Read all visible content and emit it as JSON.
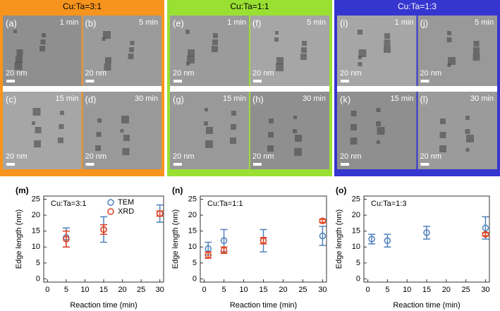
{
  "figure": {
    "panels": [
      {
        "header": "Cu:Ta=3:1",
        "color": "#f7941d",
        "images": [
          {
            "label": "(a)",
            "time": "1 min",
            "scale": "20 nm"
          },
          {
            "label": "(b)",
            "time": "5 min",
            "scale": "20 nm"
          },
          {
            "label": "(c)",
            "time": "15 min",
            "scale": "20 nm"
          },
          {
            "label": "(d)",
            "time": "30 min",
            "scale": "20 nm"
          }
        ]
      },
      {
        "header": "Cu:Ta=1:1",
        "color": "#99e033",
        "images": [
          {
            "label": "(e)",
            "time": "1 min",
            "scale": "20 nm"
          },
          {
            "label": "(f)",
            "time": "5 min",
            "scale": "20 nm"
          },
          {
            "label": "(g)",
            "time": "15 min",
            "scale": "20 nm"
          },
          {
            "label": "(h)",
            "time": "30 min",
            "scale": "20 nm"
          }
        ]
      },
      {
        "header": "Cu:Ta=1:3",
        "color": "#3535d0",
        "images": [
          {
            "label": "(i)",
            "time": "1 min",
            "scale": "20 nm"
          },
          {
            "label": "(j)",
            "time": "5 min",
            "scale": "20 nm"
          },
          {
            "label": "(k)",
            "time": "15 min",
            "scale": "20 nm"
          },
          {
            "label": "(l)",
            "time": "30 min",
            "scale": "20 nm"
          }
        ]
      }
    ]
  },
  "chart_data": [
    {
      "type": "scatter",
      "panel_label": "(m)",
      "annotation": "Cu:Ta=3:1",
      "xlabel": "Reaction time (min)",
      "ylabel": "Edge length (nm)",
      "x": [
        5,
        15,
        30
      ],
      "xlim": [
        -1,
        31
      ],
      "xticks": [
        0,
        5,
        10,
        15,
        20,
        25,
        30
      ],
      "ylim": [
        -1,
        26
      ],
      "yticks": [
        0,
        5,
        10,
        15,
        20,
        25
      ],
      "legend": "upper center",
      "series": [
        {
          "name": "TEM",
          "color": "#4f81bd",
          "values": [
            13,
            15.5,
            20.5
          ],
          "errors": [
            3,
            4,
            2.7
          ]
        },
        {
          "name": "XRD",
          "color": "#e0401c",
          "values": [
            12.5,
            15.5,
            20.5
          ],
          "errors": [
            2.5,
            1.5,
            0.8
          ]
        }
      ]
    },
    {
      "type": "scatter",
      "panel_label": "(n)",
      "annotation": "Cu:Ta=1:1",
      "xlabel": "Reaction time (min)",
      "ylabel": "Edge length (nm)",
      "x": [
        1,
        5,
        15,
        30
      ],
      "xlim": [
        -1,
        31
      ],
      "xticks": [
        0,
        5,
        10,
        15,
        20,
        25,
        30
      ],
      "ylim": [
        -1,
        26
      ],
      "yticks": [
        0,
        5,
        10,
        15,
        20,
        25
      ],
      "series": [
        {
          "color": "#4f81bd",
          "values": [
            9.5,
            12,
            12,
            13.5
          ],
          "errors": [
            2,
            3.5,
            3.5,
            3
          ]
        },
        {
          "color": "#e0401c",
          "values": [
            7.5,
            9,
            12,
            18.2
          ],
          "errors": [
            1,
            1,
            1,
            0.5
          ]
        }
      ]
    },
    {
      "type": "scatter",
      "panel_label": "(o)",
      "annotation": "Cu:Ta=1:3",
      "xlabel": "Reaction time (min)",
      "ylabel": "Edge length (nm)",
      "x": [
        1,
        5,
        15,
        30
      ],
      "xlim": [
        -1,
        31
      ],
      "xticks": [
        0,
        5,
        10,
        15,
        20,
        25,
        30
      ],
      "ylim": [
        -1,
        26
      ],
      "yticks": [
        0,
        5,
        10,
        15,
        20,
        25
      ],
      "series": [
        {
          "color": "#4f81bd",
          "values": [
            12.5,
            12,
            14.5,
            16
          ],
          "errors": [
            1.5,
            2,
            2,
            3.5
          ]
        },
        {
          "color": "#e0401c",
          "values": [
            null,
            null,
            null,
            14
          ],
          "errors": [
            null,
            null,
            null,
            0.5
          ]
        }
      ]
    }
  ]
}
